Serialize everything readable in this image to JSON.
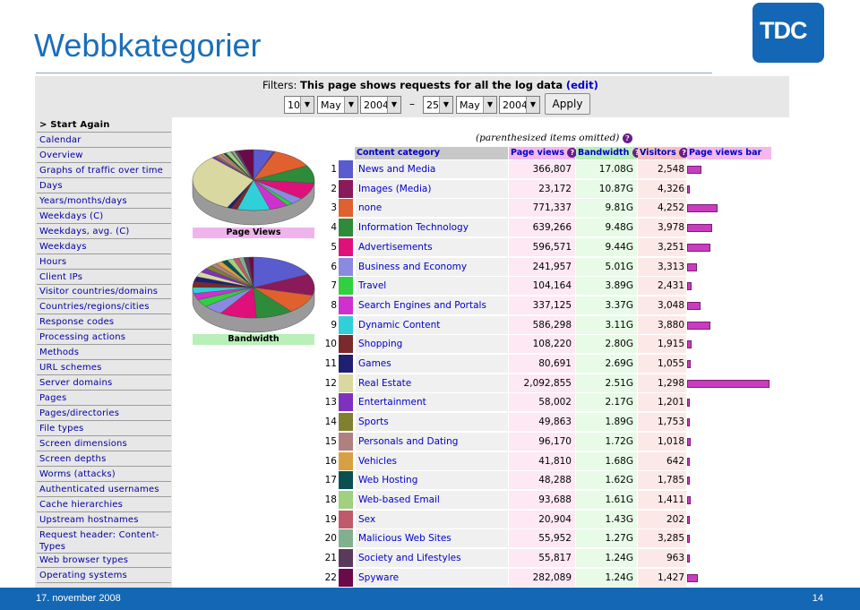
{
  "slide": {
    "title": "Webbkategorier",
    "footer_date": "17. november 2008",
    "page_number": "14",
    "logo_text": "TDC"
  },
  "filter": {
    "label": "Filters:",
    "text": "This page shows requests for all the log data",
    "edit": "(edit)",
    "from": {
      "day": "10",
      "month": "May",
      "year": "2004"
    },
    "dash": "–",
    "to": {
      "day": "25",
      "month": "May",
      "year": "2004"
    },
    "apply": "Apply"
  },
  "menu": [
    "> Start Again",
    "Calendar",
    "Overview",
    "Graphs of traffic over time",
    "Days",
    "Years/months/days",
    "Weekdays (C)",
    "Weekdays, avg. (C)",
    "Weekdays",
    "Hours",
    "Client IPs",
    "Visitor countries/domains",
    "Countries/regions/cities",
    "Response codes",
    "Processing actions",
    "Methods",
    "URL schemes",
    "Server domains",
    "Pages",
    "Pages/directories",
    "File types",
    "Screen dimensions",
    "Screen depths",
    "Worms (attacks)",
    "Authenticated usernames",
    "Cache hierarchies",
    "Upstream hostnames",
    "Request header: Content-Types",
    "Web browser types",
    "Operating systems"
  ],
  "pies": {
    "page_views_label": "Page Views",
    "bandwidth_label": "Bandwidth"
  },
  "table": {
    "note": "(parenthesized items omitted)",
    "headers": {
      "category": "Content category",
      "page_views": "Page views",
      "bandwidth": "Bandwidth",
      "visitors": "Visitors",
      "bar": "Page views bar"
    },
    "rows": [
      {
        "n": "1",
        "name": "News and Media",
        "pv": "366,807",
        "bw": "17.08G",
        "vis": "2,548",
        "color": "#5b5bd0",
        "pvn": 366807,
        "bwn": 17.08
      },
      {
        "n": "2",
        "name": "Images (Media)",
        "pv": "23,172",
        "bw": "10.87G",
        "vis": "4,326",
        "color": "#8a1a5a",
        "pvn": 23172,
        "bwn": 10.87
      },
      {
        "n": "3",
        "name": "none",
        "pv": "771,337",
        "bw": "9.81G",
        "vis": "4,252",
        "color": "#e06030",
        "pvn": 771337,
        "bwn": 9.81
      },
      {
        "n": "4",
        "name": "Information Technology",
        "pv": "639,266",
        "bw": "9.48G",
        "vis": "3,978",
        "color": "#2e8b3a",
        "pvn": 639266,
        "bwn": 9.48
      },
      {
        "n": "5",
        "name": "Advertisements",
        "pv": "596,571",
        "bw": "9.44G",
        "vis": "3,251",
        "color": "#e0107a",
        "pvn": 596571,
        "bwn": 9.44
      },
      {
        "n": "6",
        "name": "Business and Economy",
        "pv": "241,957",
        "bw": "5.01G",
        "vis": "3,313",
        "color": "#8a8ae0",
        "pvn": 241957,
        "bwn": 5.01
      },
      {
        "n": "7",
        "name": "Travel",
        "pv": "104,164",
        "bw": "3.89G",
        "vis": "2,431",
        "color": "#30d040",
        "pvn": 104164,
        "bwn": 3.89
      },
      {
        "n": "8",
        "name": "Search Engines and Portals",
        "pv": "337,125",
        "bw": "3.37G",
        "vis": "3,048",
        "color": "#d030d0",
        "pvn": 337125,
        "bwn": 3.37
      },
      {
        "n": "9",
        "name": "Dynamic Content",
        "pv": "586,298",
        "bw": "3.11G",
        "vis": "3,880",
        "color": "#30d0d8",
        "pvn": 586298,
        "bwn": 3.11
      },
      {
        "n": "10",
        "name": "Shopping",
        "pv": "108,220",
        "bw": "2.80G",
        "vis": "1,915",
        "color": "#7a2a2a",
        "pvn": 108220,
        "bwn": 2.8
      },
      {
        "n": "11",
        "name": "Games",
        "pv": "80,691",
        "bw": "2.69G",
        "vis": "1,055",
        "color": "#202070",
        "pvn": 80691,
        "bwn": 2.69
      },
      {
        "n": "12",
        "name": "Real Estate",
        "pv": "2,092,855",
        "bw": "2.51G",
        "vis": "1,298",
        "color": "#d8d8a0",
        "pvn": 2092855,
        "bwn": 2.51
      },
      {
        "n": "13",
        "name": "Entertainment",
        "pv": "58,002",
        "bw": "2.17G",
        "vis": "1,201",
        "color": "#8030c0",
        "pvn": 58002,
        "bwn": 2.17
      },
      {
        "n": "14",
        "name": "Sports",
        "pv": "49,863",
        "bw": "1.89G",
        "vis": "1,753",
        "color": "#808030",
        "pvn": 49863,
        "bwn": 1.89
      },
      {
        "n": "15",
        "name": "Personals and Dating",
        "pv": "96,170",
        "bw": "1.72G",
        "vis": "1,018",
        "color": "#b08080",
        "pvn": 96170,
        "bwn": 1.72
      },
      {
        "n": "16",
        "name": "Vehicles",
        "pv": "41,810",
        "bw": "1.68G",
        "vis": "642",
        "color": "#d8a040",
        "pvn": 41810,
        "bwn": 1.68
      },
      {
        "n": "17",
        "name": "Web Hosting",
        "pv": "48,288",
        "bw": "1.62G",
        "vis": "1,785",
        "color": "#0a5050",
        "pvn": 48288,
        "bwn": 1.62
      },
      {
        "n": "18",
        "name": "Web-based Email",
        "pv": "93,688",
        "bw": "1.61G",
        "vis": "1,411",
        "color": "#a0d080",
        "pvn": 93688,
        "bwn": 1.61
      },
      {
        "n": "19",
        "name": "Sex",
        "pv": "20,904",
        "bw": "1.43G",
        "vis": "202",
        "color": "#c05a6a",
        "pvn": 20904,
        "bwn": 1.43
      },
      {
        "n": "20",
        "name": "Malicious Web Sites",
        "pv": "55,952",
        "bw": "1.27G",
        "vis": "3,285",
        "color": "#80b090",
        "pvn": 55952,
        "bwn": 1.27
      },
      {
        "n": "21",
        "name": "Society and Lifestyles",
        "pv": "55,817",
        "bw": "1.24G",
        "vis": "963",
        "color": "#5a3a5a",
        "pvn": 55817,
        "bwn": 1.24
      },
      {
        "n": "22",
        "name": "Spyware",
        "pv": "282,089",
        "bw": "1.24G",
        "vis": "1,427",
        "color": "#6a0a4a",
        "pvn": 282089,
        "bwn": 1.24
      }
    ]
  }
}
